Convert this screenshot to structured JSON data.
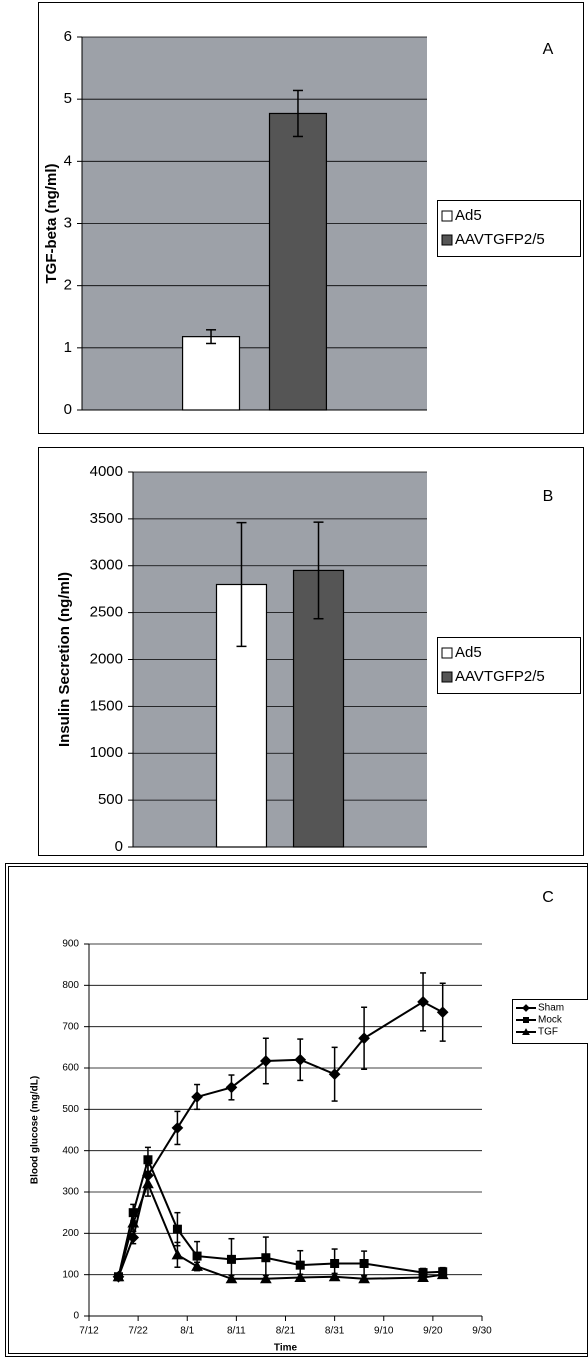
{
  "chart_data": [
    {
      "type": "bar",
      "annotation": "A",
      "ylabel": "TGF-beta (ng/ml)",
      "categories": [
        null
      ],
      "series": [
        {
          "name": "Ad5",
          "color": "#ffffff",
          "values": [
            1.18
          ],
          "errors": [
            0.11
          ]
        },
        {
          "name": "AAVTGFP2/5",
          "color": "#555555",
          "values": [
            4.77
          ],
          "errors": [
            0.37
          ]
        }
      ],
      "ylim": [
        0,
        6
      ],
      "yticks": [
        0,
        1,
        2,
        3,
        4,
        5,
        6
      ],
      "grid": true,
      "background": "#9da1a8",
      "legend": "right"
    },
    {
      "type": "bar",
      "annotation": "B",
      "ylabel": "Insulin Secretion (ng/ml)",
      "categories": [
        null
      ],
      "series": [
        {
          "name": "Ad5",
          "color": "#ffffff",
          "values": [
            2800
          ],
          "errors": [
            660
          ]
        },
        {
          "name": "AAVTGFP2/5",
          "color": "#555555",
          "values": [
            2950
          ],
          "errors": [
            515
          ]
        }
      ],
      "ylim": [
        0,
        4000
      ],
      "yticks": [
        0,
        500,
        1000,
        1500,
        2000,
        2500,
        3000,
        3500,
        4000
      ],
      "grid": true,
      "background": "#9da1a8",
      "legend": "right"
    },
    {
      "type": "line",
      "annotation": "C",
      "ylabel": "Blood glucose (mg/dL)",
      "xlabel": "Time",
      "x": [
        "7/18",
        "7/21",
        "7/24",
        "7/30",
        "8/3",
        "8/10",
        "8/17",
        "8/24",
        "8/31",
        "9/6",
        "9/18",
        "9/22"
      ],
      "series": [
        {
          "name": "Sham",
          "color": "#000000",
          "marker": "diamond",
          "values": [
            95,
            190,
            340,
            455,
            530,
            553,
            617,
            620,
            585,
            672,
            760,
            735
          ],
          "errors": [
            8,
            15,
            25,
            40,
            30,
            30,
            55,
            50,
            65,
            75,
            70,
            70
          ]
        },
        {
          "name": "Mock",
          "color": "#000000",
          "marker": "square",
          "values": [
            95,
            250,
            378,
            210,
            145,
            137,
            141,
            123,
            127,
            127,
            105,
            107
          ],
          "errors": [
            8,
            20,
            30,
            40,
            35,
            50,
            50,
            35,
            35,
            30,
            10,
            10
          ]
        },
        {
          "name": "TGF",
          "color": "#000000",
          "marker": "triangle",
          "values": [
            95,
            225,
            320,
            148,
            120,
            90,
            90,
            93,
            95,
            90,
            93,
            100
          ],
          "errors": [
            8,
            20,
            30,
            30,
            10,
            8,
            8,
            8,
            8,
            8,
            8,
            8
          ]
        }
      ],
      "xlim": [
        "7/12",
        "9/30"
      ],
      "xticks": [
        "7/12",
        "7/22",
        "8/1",
        "8/11",
        "8/21",
        "8/31",
        "9/10",
        "9/20",
        "9/30"
      ],
      "ylim": [
        0,
        900
      ],
      "yticks": [
        0,
        100,
        200,
        300,
        400,
        500,
        600,
        700,
        800,
        900
      ],
      "grid": true,
      "background": "#ffffff",
      "legend": "right"
    }
  ]
}
